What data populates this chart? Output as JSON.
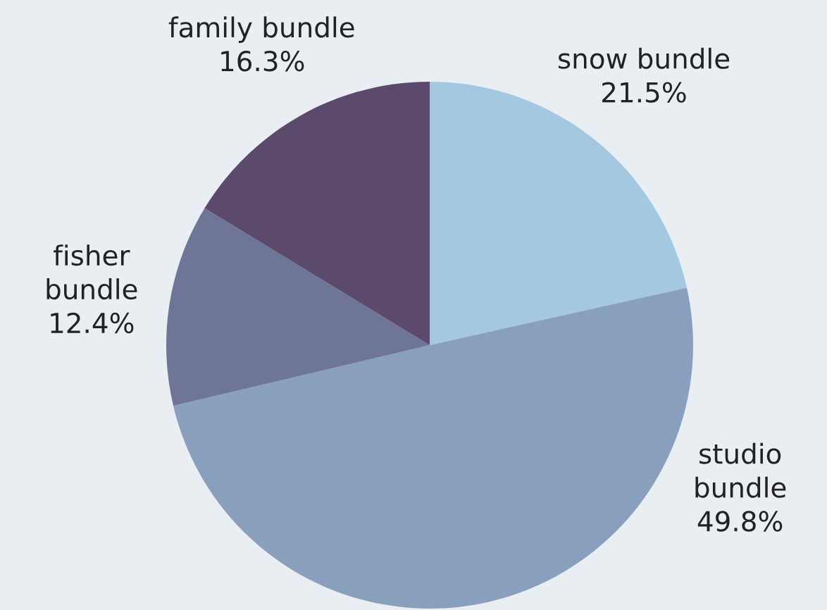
{
  "chart_data": {
    "type": "pie",
    "categories": [
      "snow bundle",
      "studio\nbundle",
      "fisher\nbundle",
      "family bundle"
    ],
    "values": [
      21.5,
      49.8,
      12.4,
      16.3
    ],
    "value_labels": [
      "21.5%",
      "49.8%",
      "12.4%",
      "16.3%"
    ],
    "colors": [
      "#a3c8e0",
      "#889fbd",
      "#6f7596",
      "#5b4a6b"
    ],
    "legend": false
  }
}
